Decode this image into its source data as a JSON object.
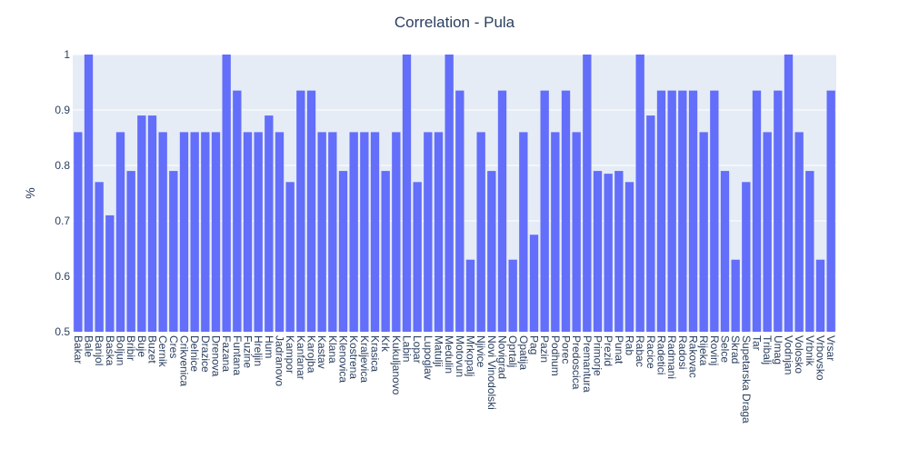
{
  "chart_data": {
    "type": "bar",
    "title": "Correlation - Pula",
    "xlabel": "",
    "ylabel": "%",
    "ylim": [
      0.5,
      1.0
    ],
    "yticks": [
      0.5,
      0.6,
      0.7,
      0.8,
      0.9,
      1
    ],
    "ytick_labels": [
      "0.5",
      "0.6",
      "0.7",
      "0.8",
      "0.9",
      "1"
    ],
    "grid": true,
    "colors": {
      "bar": "#636efa",
      "plot_bg": "#e5ecf6",
      "grid": "#ffffff",
      "text": "#2a3f5f"
    },
    "categories": [
      "Bakar",
      "Bale",
      "Banjol",
      "Baska",
      "Boljun",
      "Bribir",
      "Buje",
      "Buzet",
      "Cernik",
      "Cres",
      "Crikvenica",
      "Delnice",
      "Drazice",
      "Drenova",
      "Fazana",
      "Funtana",
      "Fuzine",
      "Hreljin",
      "Hum",
      "Jadranovo",
      "Kampor",
      "Kanfanar",
      "Karojba",
      "Kastav",
      "Klana",
      "Klenovica",
      "Kostrena",
      "Kraljevica",
      "Krasica",
      "Krk",
      "Kukuljanovo",
      "Labin",
      "Lopar",
      "Lupoglav",
      "Matulji",
      "Medulin",
      "Motovun",
      "Mrkopalj",
      "Njivice",
      "Novi Vinodolski",
      "Novigrad",
      "Oprtalj",
      "Opatija",
      "Pag",
      "Pazin",
      "Podhum",
      "Porec",
      "Predoscica",
      "Premantura",
      "Primorje",
      "Prezid",
      "Punat",
      "Rab",
      "Rabac",
      "Racice",
      "Radetici",
      "Radmani",
      "Radosi",
      "Rakovac",
      "Rijeka",
      "Rovinj",
      "Selce",
      "Skrad",
      "Supetarska Draga",
      "Tar",
      "Tribalj",
      "Umag",
      "Vodnjan",
      "Volosko",
      "Vrbnik",
      "Vrbovsko",
      "Vrsar"
    ],
    "values": [
      0.86,
      1.0,
      0.77,
      0.71,
      0.86,
      0.79,
      0.89,
      0.89,
      0.86,
      0.79,
      0.86,
      0.86,
      0.86,
      0.86,
      1.0,
      0.935,
      0.86,
      0.86,
      0.89,
      0.86,
      0.77,
      0.935,
      0.935,
      0.86,
      0.86,
      0.79,
      0.86,
      0.86,
      0.86,
      0.79,
      0.86,
      1.0,
      0.77,
      0.86,
      0.86,
      1.0,
      0.935,
      0.63,
      0.86,
      0.79,
      0.935,
      0.63,
      0.86,
      0.675,
      0.935,
      0.86,
      0.935,
      0.86,
      1.0,
      0.79,
      0.785,
      0.79,
      0.77,
      1.0,
      0.89,
      0.935,
      0.935,
      0.935,
      0.935,
      0.86,
      0.935,
      0.79,
      0.63,
      0.77,
      0.935,
      0.86,
      0.935,
      1.0,
      0.86,
      0.79,
      0.63,
      0.935
    ]
  }
}
